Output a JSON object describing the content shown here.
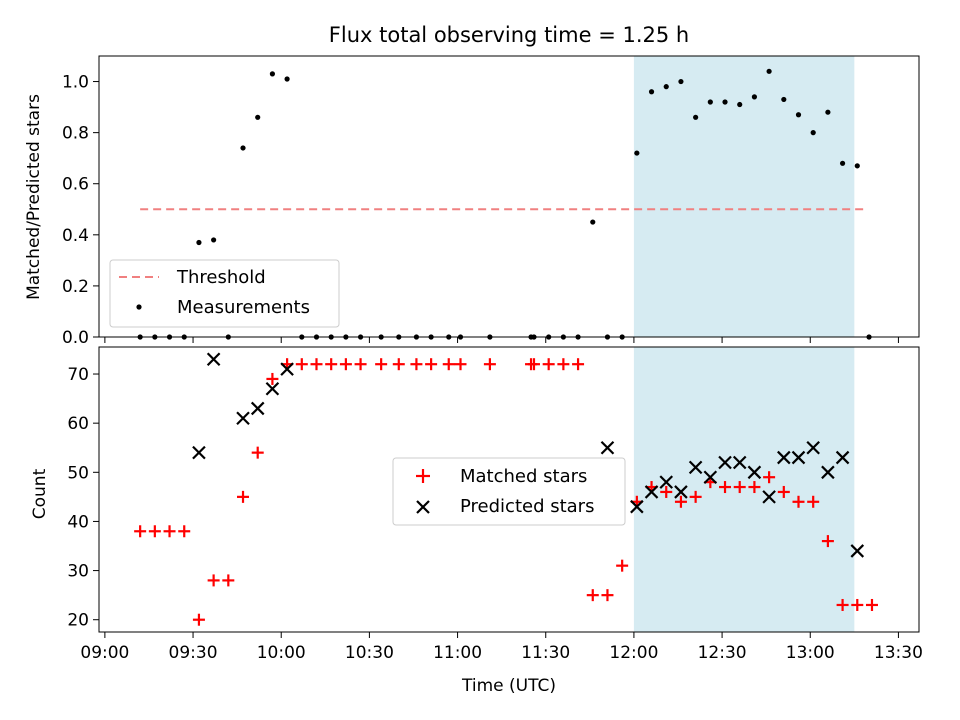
{
  "chart_data": {
    "title": "Flux total observing time = 1.25 h",
    "xlabel": "Time (UTC)",
    "x_unit": "minutes after 09:00 UTC",
    "xlim": [
      -2,
      277
    ],
    "x_ticks": [
      {
        "value": 0,
        "label": "09:00"
      },
      {
        "value": 30,
        "label": "09:30"
      },
      {
        "value": 60,
        "label": "10:00"
      },
      {
        "value": 90,
        "label": "10:30"
      },
      {
        "value": 120,
        "label": "11:00"
      },
      {
        "value": 150,
        "label": "11:30"
      },
      {
        "value": 180,
        "label": "12:00"
      },
      {
        "value": 210,
        "label": "12:30"
      },
      {
        "value": 240,
        "label": "13:00"
      },
      {
        "value": 270,
        "label": "13:30"
      }
    ],
    "shaded_region": {
      "x_start": 180,
      "x_end": 255,
      "color": "#add8e6"
    },
    "top": {
      "type": "scatter",
      "ylabel": "Matched/Predicted stars",
      "ylim": [
        0,
        1.1
      ],
      "y_ticks": [
        {
          "value": 0.0,
          "label": "0.0"
        },
        {
          "value": 0.2,
          "label": "0.2"
        },
        {
          "value": 0.4,
          "label": "0.4"
        },
        {
          "value": 0.6,
          "label": "0.6"
        },
        {
          "value": 0.8,
          "label": "0.8"
        },
        {
          "value": 1.0,
          "label": "1.0"
        }
      ],
      "threshold": {
        "name": "Threshold",
        "value": 0.5,
        "x_start": 12,
        "x_end": 258,
        "color": "#f08080"
      },
      "measurements": {
        "name": "Measurements",
        "color": "#000000",
        "x": [
          12,
          17,
          22,
          27,
          32,
          37,
          42,
          47,
          52,
          57,
          62,
          67,
          72,
          77,
          82,
          87,
          94,
          100,
          106,
          111,
          117,
          121,
          131,
          145,
          146,
          151,
          156,
          161,
          166,
          171,
          176,
          181,
          186,
          191,
          196,
          201,
          206,
          211,
          216,
          221,
          226,
          231,
          236,
          241,
          246,
          251,
          256,
          260
        ],
        "y": [
          0,
          0,
          0,
          0,
          0.37,
          0.38,
          0,
          0.74,
          0.86,
          1.03,
          1.01,
          0,
          0,
          0,
          0,
          0,
          0,
          0,
          0,
          0,
          0,
          0,
          0,
          0,
          0,
          0,
          0,
          0,
          0.45,
          0,
          0,
          0.72,
          0.96,
          0.98,
          1.0,
          0.86,
          0.92,
          0.92,
          0.91,
          0.94,
          1.04,
          0.93,
          0.87,
          0.8,
          0.88,
          0.68,
          0.67,
          0
        ]
      },
      "legend": {
        "position": "lower-left",
        "threshold_label": "Threshold",
        "measurements_label": "Measurements"
      }
    },
    "bottom": {
      "type": "scatter",
      "ylabel": "Count",
      "ylim": [
        17.5,
        75.5
      ],
      "y_ticks": [
        {
          "value": 20,
          "label": "20"
        },
        {
          "value": 30,
          "label": "30"
        },
        {
          "value": 40,
          "label": "40"
        },
        {
          "value": 50,
          "label": "50"
        },
        {
          "value": 60,
          "label": "60"
        },
        {
          "value": 70,
          "label": "70"
        }
      ],
      "matched": {
        "name": "Matched stars",
        "color": "#ff0000",
        "x": [
          12,
          17,
          22,
          27,
          32,
          37,
          42,
          47,
          52,
          57,
          62,
          67,
          72,
          77,
          82,
          87,
          94,
          100,
          106,
          111,
          117,
          121,
          131,
          145,
          146,
          151,
          156,
          161,
          166,
          171,
          176,
          181,
          186,
          191,
          196,
          201,
          206,
          211,
          216,
          221,
          226,
          231,
          236,
          241,
          246,
          251,
          256,
          261
        ],
        "y": [
          38,
          38,
          38,
          38,
          20,
          28,
          28,
          45,
          54,
          69,
          72,
          72,
          72,
          72,
          72,
          72,
          72,
          72,
          72,
          72,
          72,
          72,
          72,
          72,
          72,
          72,
          72,
          72,
          25,
          25,
          31,
          44,
          47,
          46,
          44,
          45,
          48,
          47,
          47,
          47,
          49,
          46,
          44,
          44,
          36,
          23,
          23,
          23
        ]
      },
      "predicted": {
        "name": "Predicted stars",
        "color": "#000000",
        "x": [
          32,
          37,
          47,
          52,
          57,
          62,
          171,
          181,
          186,
          191,
          196,
          201,
          206,
          211,
          216,
          221,
          226,
          231,
          236,
          241,
          246,
          251,
          256
        ],
        "y": [
          54,
          73,
          61,
          63,
          67,
          71,
          55,
          43,
          46,
          48,
          46,
          51,
          49,
          52,
          52,
          50,
          45,
          53,
          53,
          55,
          50,
          53,
          34
        ]
      },
      "legend": {
        "position": "center",
        "matched_label": "Matched stars",
        "predicted_label": "Predicted stars"
      }
    }
  }
}
